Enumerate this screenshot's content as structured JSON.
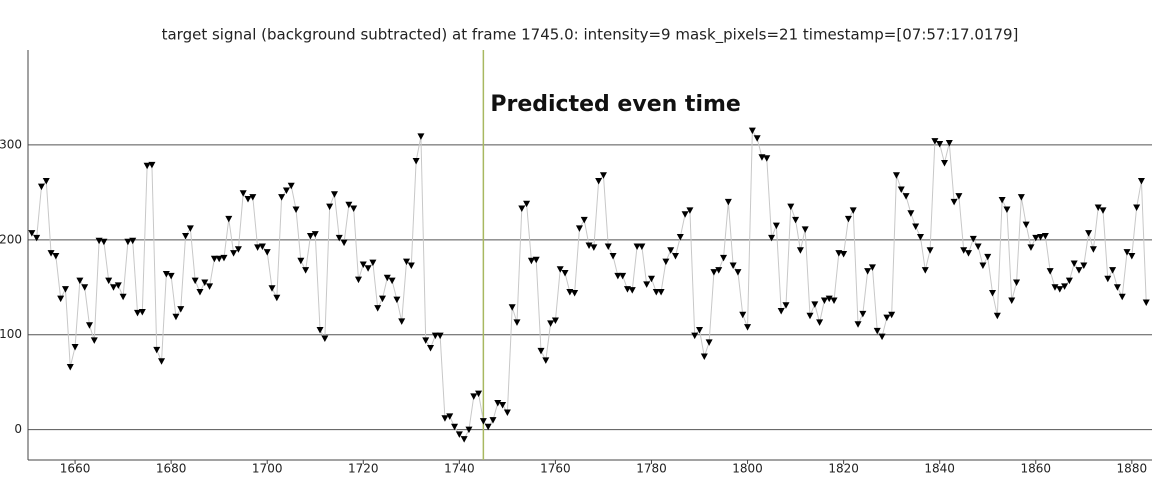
{
  "chart_data": {
    "type": "line",
    "title": "target signal (background subtracted) at frame 1745.0: intensity=9 mask_pixels=21 timestamp=[07:57:17.0179]",
    "annotation": "Predicted even time",
    "vline": 1745,
    "vline_color": "#a8b860",
    "grid": true,
    "x": [
      1651,
      1652,
      1653,
      1654,
      1655,
      1656,
      1657,
      1658,
      1659,
      1660,
      1661,
      1662,
      1663,
      1664,
      1665,
      1666,
      1667,
      1668,
      1669,
      1670,
      1671,
      1672,
      1673,
      1674,
      1675,
      1676,
      1677,
      1678,
      1679,
      1680,
      1681,
      1682,
      1683,
      1684,
      1685,
      1686,
      1687,
      1688,
      1689,
      1690,
      1691,
      1692,
      1693,
      1694,
      1695,
      1696,
      1697,
      1698,
      1699,
      1700,
      1701,
      1702,
      1703,
      1704,
      1705,
      1706,
      1707,
      1708,
      1709,
      1710,
      1711,
      1712,
      1713,
      1714,
      1715,
      1716,
      1717,
      1718,
      1719,
      1720,
      1721,
      1722,
      1723,
      1724,
      1725,
      1726,
      1727,
      1728,
      1729,
      1730,
      1731,
      1732,
      1733,
      1734,
      1735,
      1736,
      1737,
      1738,
      1739,
      1740,
      1741,
      1742,
      1743,
      1744,
      1745,
      1746,
      1747,
      1748,
      1749,
      1750,
      1751,
      1752,
      1753,
      1754,
      1755,
      1756,
      1757,
      1758,
      1759,
      1760,
      1761,
      1762,
      1763,
      1764,
      1765,
      1766,
      1767,
      1768,
      1769,
      1770,
      1771,
      1772,
      1773,
      1774,
      1775,
      1776,
      1777,
      1778,
      1779,
      1780,
      1781,
      1782,
      1783,
      1784,
      1785,
      1786,
      1787,
      1788,
      1789,
      1790,
      1791,
      1792,
      1793,
      1794,
      1795,
      1796,
      1797,
      1798,
      1799,
      1800,
      1801,
      1802,
      1803,
      1804,
      1805,
      1806,
      1807,
      1808,
      1809,
      1810,
      1811,
      1812,
      1813,
      1814,
      1815,
      1816,
      1817,
      1818,
      1819,
      1820,
      1821,
      1822,
      1823,
      1824,
      1825,
      1826,
      1827,
      1828,
      1829,
      1830,
      1831,
      1832,
      1833,
      1834,
      1835,
      1836,
      1837,
      1838,
      1839,
      1840,
      1841,
      1842,
      1843,
      1844,
      1845,
      1846,
      1847,
      1848,
      1849,
      1850,
      1851,
      1852,
      1853,
      1854,
      1855,
      1856,
      1857,
      1858,
      1859,
      1860,
      1861,
      1862,
      1863,
      1864,
      1865,
      1866,
      1867,
      1868,
      1869,
      1870,
      1871,
      1872,
      1873,
      1874,
      1875,
      1876,
      1877,
      1878,
      1879,
      1880,
      1881,
      1882,
      1883
    ],
    "series": [
      {
        "line_color": "#c8c8c8",
        "color": "#000000",
        "values": [
          207,
          202,
          256,
          262,
          186,
          183,
          138,
          148,
          66,
          87,
          157,
          150,
          110,
          94,
          199,
          198,
          157,
          150,
          152,
          140,
          198,
          199,
          123,
          124,
          278,
          279,
          84,
          72,
          164,
          162,
          119,
          127,
          204,
          212,
          157,
          145,
          155,
          151,
          180,
          180,
          181,
          222,
          186,
          190,
          249,
          243,
          245,
          192,
          193,
          187,
          149,
          139,
          245,
          252,
          257,
          232,
          178,
          168,
          204,
          206,
          105,
          96,
          235,
          248,
          202,
          197,
          237,
          233,
          158,
          174,
          170,
          176,
          128,
          138,
          160,
          157,
          137,
          114,
          177,
          173,
          283,
          309,
          94,
          86,
          99,
          99,
          12,
          14,
          3,
          -5,
          -10,
          0,
          35,
          38,
          9,
          3,
          10,
          28,
          26,
          18,
          129,
          113,
          233,
          238,
          178,
          179,
          83,
          73,
          112,
          115,
          169,
          165,
          145,
          144,
          212,
          221,
          194,
          192,
          262,
          268,
          193,
          183,
          162,
          162,
          148,
          147,
          193,
          193,
          153,
          159,
          145,
          145,
          177,
          189,
          183,
          203,
          227,
          231,
          99,
          105,
          77,
          92,
          166,
          168,
          181,
          240,
          173,
          166,
          121,
          108,
          315,
          307,
          287,
          286,
          202,
          215,
          125,
          131,
          235,
          221,
          189,
          211,
          120,
          132,
          113,
          136,
          138,
          136,
          186,
          185,
          222,
          231,
          111,
          122,
          167,
          171,
          104,
          98,
          118,
          121,
          268,
          253,
          246,
          228,
          214,
          203,
          168,
          189,
          304,
          301,
          281,
          302,
          240,
          246,
          189,
          186,
          201,
          193,
          173,
          182,
          144,
          120,
          242,
          232,
          136,
          155,
          245,
          216,
          192,
          202,
          203,
          204,
          167,
          150,
          148,
          151,
          157,
          175,
          168,
          173,
          207,
          190,
          234,
          231,
          159,
          168,
          150,
          140,
          187,
          183,
          234,
          262,
          134
        ]
      }
    ],
    "xlim": [
      1650.2,
      1884.2
    ],
    "ylim": [
      -32,
      400
    ],
    "xticks": [
      1660,
      1680,
      1700,
      1720,
      1740,
      1760,
      1780,
      1800,
      1820,
      1840,
      1860,
      1880
    ],
    "yticks": [
      0,
      100,
      200,
      300
    ]
  }
}
